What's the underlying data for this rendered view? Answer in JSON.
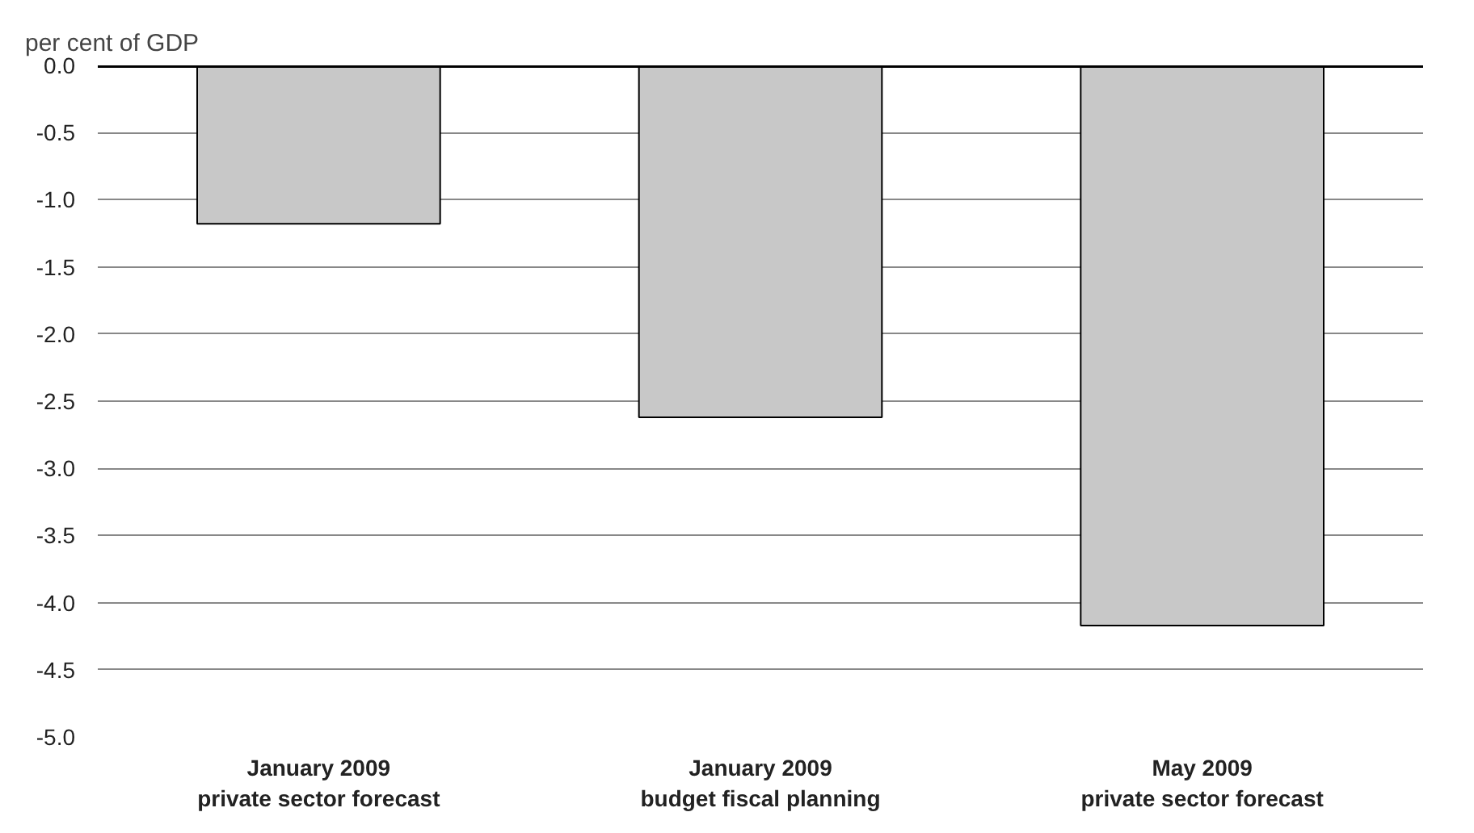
{
  "chart_data": {
    "type": "bar",
    "ylabel": "per cent of GDP",
    "categories": [
      "January 2009\nprivate sector forecast",
      "January 2009\nbudget fiscal planning",
      "May 2009\nprivate sector forecast"
    ],
    "values": [
      -1.18,
      -2.62,
      -4.17
    ],
    "color": "#c8c8c8",
    "ylim": [
      -5.0,
      0.0
    ],
    "yticks": [
      {
        "value": 0,
        "label": "0.0"
      },
      -0.5,
      {
        "value": -1,
        "label": "-1.0"
      },
      -1.5,
      {
        "value": -2,
        "label": "-2.0"
      },
      -2.5,
      {
        "value": -3,
        "label": "-3.0"
      },
      -3.5,
      {
        "value": -4,
        "label": "-4.0"
      },
      -4.5,
      {
        "value": -5,
        "label": "-5.0"
      }
    ],
    "grid": "y",
    "ref_lines": [
      {
        "axis": "y",
        "value": 0,
        "color": "#000000"
      }
    ]
  }
}
